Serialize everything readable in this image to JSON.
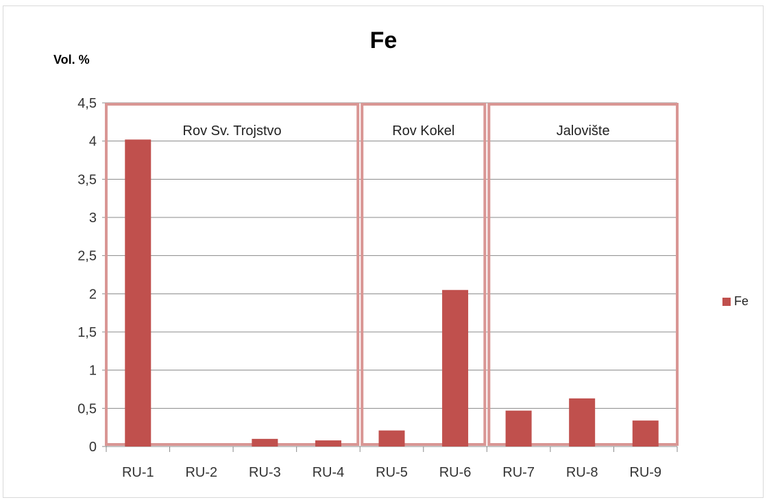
{
  "chart_data": {
    "type": "bar",
    "title": "Fe",
    "ylabel": "Vol. %",
    "xlabel": "",
    "categories": [
      "RU-1",
      "RU-2",
      "RU-3",
      "RU-4",
      "RU-5",
      "RU-6",
      "RU-7",
      "RU-8",
      "RU-9"
    ],
    "series": [
      {
        "name": "Fe",
        "values": [
          4.02,
          0.0,
          0.1,
          0.08,
          0.21,
          2.05,
          0.47,
          0.63,
          0.34
        ]
      }
    ],
    "ylim": [
      0,
      4.5
    ],
    "yticks": [
      "0",
      "0,5",
      "1",
      "1,5",
      "2",
      "2,5",
      "3",
      "3,5",
      "4",
      "4,5"
    ],
    "grid": true,
    "legend_position": "right",
    "groups": [
      {
        "label": "Rov Sv. Trojstvo",
        "categories": [
          "RU-1",
          "RU-2",
          "RU-3",
          "RU-4"
        ]
      },
      {
        "label": "Rov Kokel",
        "categories": [
          "RU-5",
          "RU-6"
        ]
      },
      {
        "label": "Jalovište",
        "categories": [
          "RU-7",
          "RU-8",
          "RU-9"
        ]
      }
    ],
    "colors": {
      "bar": "#c0504d",
      "group_box": "#d99694",
      "grid": "#888888"
    }
  }
}
